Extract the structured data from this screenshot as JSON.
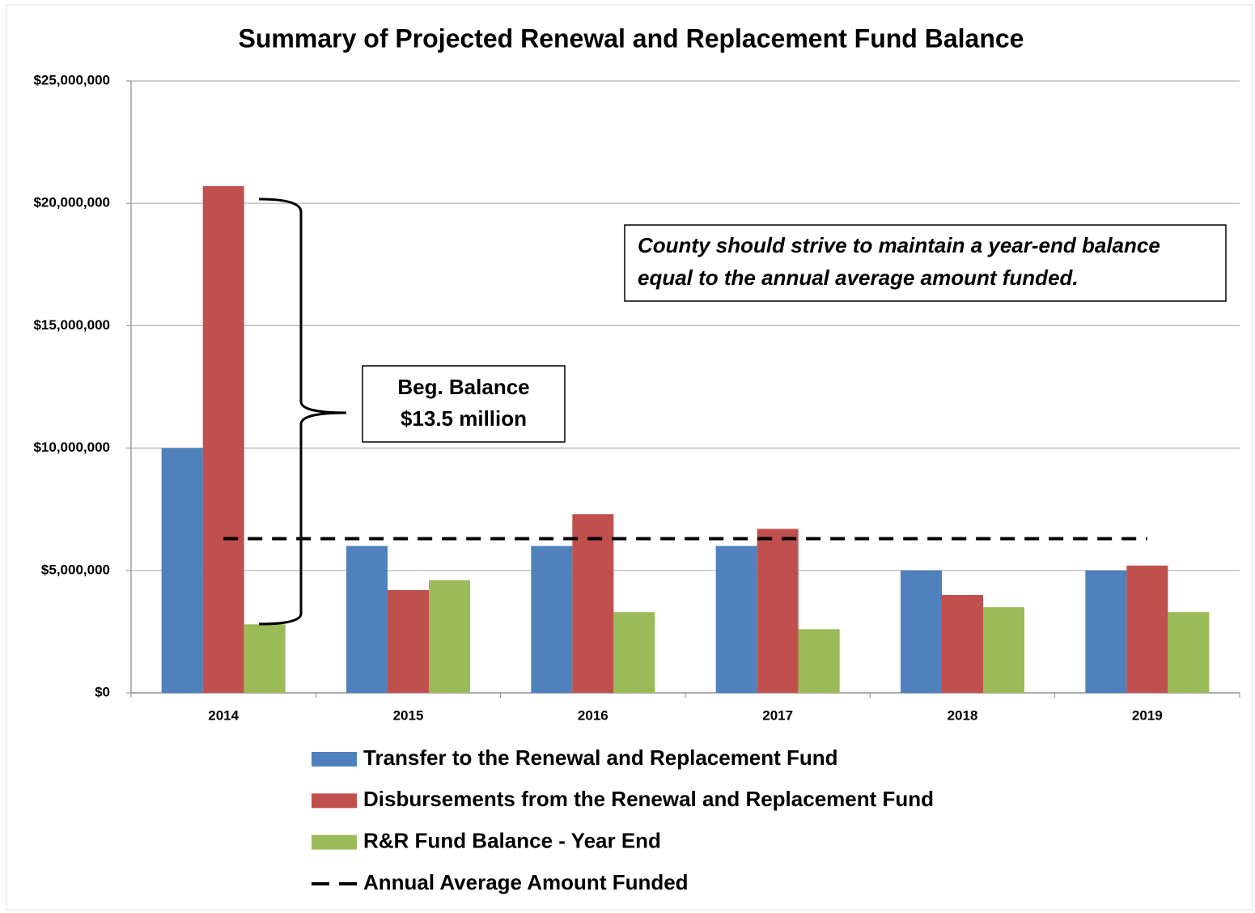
{
  "chart_data": {
    "type": "bar",
    "title": "Summary of Projected Renewal and Replacement Fund Balance",
    "categories": [
      "2014",
      "2015",
      "2016",
      "2017",
      "2018",
      "2019"
    ],
    "series": [
      {
        "name": "Transfer to the Renewal and Replacement Fund",
        "color": "#4f81bd",
        "values": [
          10000000,
          6000000,
          6000000,
          6000000,
          5000000,
          5000000
        ]
      },
      {
        "name": "Disbursements from the Renewal and Replacement Fund",
        "color": "#c0504d",
        "values": [
          20700000,
          4200000,
          7300000,
          6700000,
          4000000,
          5200000
        ]
      },
      {
        "name": "R&R Fund Balance - Year End",
        "color": "#9bbb59",
        "values": [
          2800000,
          4600000,
          3300000,
          2600000,
          3500000,
          3300000
        ]
      },
      {
        "name": "Annual Average Amount Funded",
        "color": "#000000",
        "type": "line",
        "dashed": true,
        "values": [
          6300000,
          6300000,
          6300000,
          6300000,
          6300000,
          6300000
        ]
      }
    ],
    "ylim": [
      0,
      25000000
    ],
    "yticks": [
      {
        "value": 0,
        "label": "$0"
      },
      {
        "value": 5000000,
        "label": "$5,000,000"
      },
      {
        "value": 10000000,
        "label": "$10,000,000"
      },
      {
        "value": 15000000,
        "label": "$15,000,000"
      },
      {
        "value": 20000000,
        "label": "$20,000,000"
      },
      {
        "value": 25000000,
        "label": "$25,000,000"
      }
    ],
    "grid": true,
    "legend": "bottom",
    "annotations": [
      {
        "lines": [
          "Beg. Balance",
          "$13.5 million"
        ]
      },
      {
        "lines": [
          "County should strive to maintain a year-end balance",
          "equal to the annual average amount funded."
        ]
      }
    ]
  }
}
